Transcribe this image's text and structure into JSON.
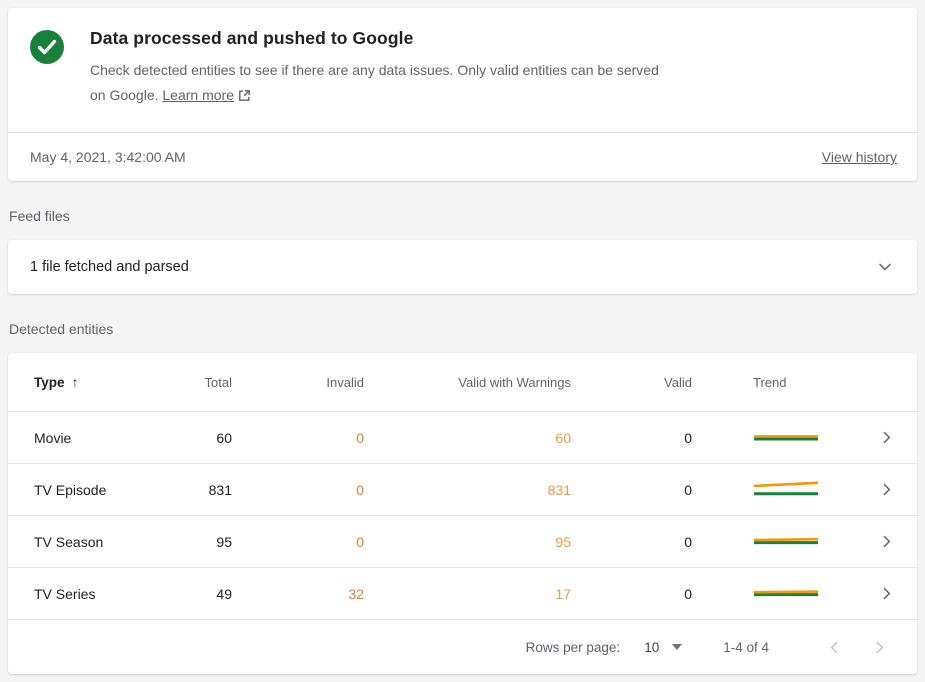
{
  "status_card": {
    "title": "Data processed and pushed to Google",
    "description": "Check detected entities to see if there are any data issues. Only valid entities can be served on Google.",
    "learn_more_label": "Learn more",
    "timestamp": "May 4, 2021, 3:42:00 AM",
    "view_history_label": "View history"
  },
  "feed_files": {
    "section_label": "Feed files",
    "summary": "1 file fetched and parsed"
  },
  "detected_entities": {
    "section_label": "Detected entities",
    "columns": {
      "type": "Type",
      "total": "Total",
      "invalid": "Invalid",
      "valid_with_warnings": "Valid with Warnings",
      "valid": "Valid",
      "trend": "Trend"
    },
    "sort": {
      "column": "Type",
      "direction": "ascending",
      "glyph": "↑"
    },
    "rows": [
      {
        "type": "Movie",
        "total": "60",
        "invalid": "0",
        "valid_with_warnings": "60",
        "valid": "0",
        "trend": {
          "warnings": [
            8.4,
            8.4
          ],
          "valid": [
            11,
            11
          ]
        }
      },
      {
        "type": "TV Episode",
        "total": "831",
        "invalid": "0",
        "valid_with_warnings": "831",
        "valid": "0",
        "trend": {
          "warnings": [
            6,
            2.8
          ],
          "valid": [
            13.8,
            13.8
          ]
        }
      },
      {
        "type": "TV Season",
        "total": "95",
        "invalid": "0",
        "valid_with_warnings": "95",
        "valid": "0",
        "trend": {
          "warnings": [
            8,
            7.2
          ],
          "valid": [
            10.6,
            10.6
          ]
        }
      },
      {
        "type": "TV Series",
        "total": "49",
        "invalid": "32",
        "valid_with_warnings": "17",
        "valid": "0",
        "trend": {
          "warnings": [
            8.2,
            7.6
          ],
          "valid": [
            10.6,
            10.6
          ]
        }
      }
    ],
    "pagination": {
      "rows_per_page_label": "Rows per page:",
      "rows_per_page_value": "10",
      "range_label": "1-4 of 4"
    }
  },
  "chart_data": {
    "type": "line",
    "note": "trend sparklines per entity row",
    "series_legend": [
      "valid_with_warnings",
      "valid"
    ],
    "rows": [
      {
        "name": "Movie",
        "valid_with_warnings": "flat",
        "valid": "flat"
      },
      {
        "name": "TV Episode",
        "valid_with_warnings": "slightly rising",
        "valid": "flat"
      },
      {
        "name": "TV Season",
        "valid_with_warnings": "flat",
        "valid": "flat"
      },
      {
        "name": "TV Series",
        "valid_with_warnings": "flat",
        "valid": "flat"
      }
    ]
  },
  "colors": {
    "success_green": "#188038",
    "invalid_text": "#dd8030",
    "warning_text": "#e99c44",
    "trend_warnings_line": "#f0980f",
    "trend_valid_line": "#188038",
    "body_text": "#202124",
    "muted_text": "#5f6368",
    "divider": "#e6e6e6",
    "disabled_icon": "#bcc0c3"
  }
}
